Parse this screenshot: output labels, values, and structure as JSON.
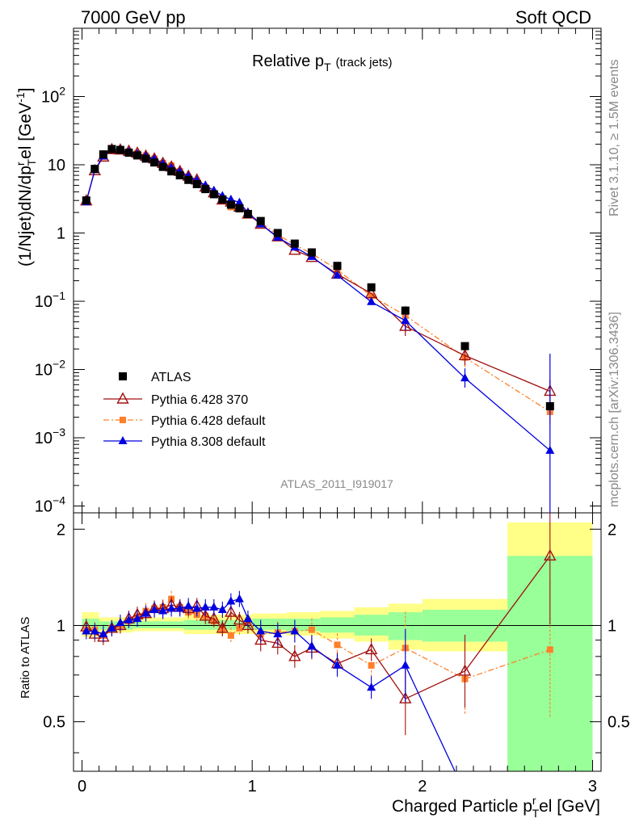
{
  "header": {
    "left": "7000 GeV pp",
    "right": "Soft QCD"
  },
  "side_labels": {
    "rivet": "Rivet 3.1.10, ≥ 1.5M events",
    "mcplots": "mcplots.cern.ch [arXiv:1306.3436]"
  },
  "chart_data": {
    "type": "scatter",
    "title": "Relative p",
    "title_sub": "T",
    "title_suffix": "(track jets)",
    "analysis_label": "ATLAS_2011_I919017",
    "xlabel": "Charged Particle p",
    "xlabel_sub": "T",
    "xlabel_sup": "r",
    "xlabel_suffix": "el [GeV]",
    "ylabel": "(1/Njet)dN/dp",
    "ylabel_sup": "r",
    "ylabel_sub": "T",
    "ylabel_suffix": "el [GeV",
    "ylabel_unit_sup": "-1",
    "ylabel_close": "]",
    "ratio_ylabel": "Ratio to ATLAS",
    "xlim": [
      -0.05,
      3.05
    ],
    "ylim_log": [
      -4.1,
      3.0
    ],
    "ratio_ylim": [
      0.35,
      2.25
    ],
    "log_y": true,
    "legend_position": "bottom-left",
    "x_ticks": [
      "0",
      "1",
      "2",
      "3"
    ],
    "y_ticks": [
      {
        "base": "10",
        "sup": "2",
        "exp": 2
      },
      {
        "base": "10",
        "sup": "",
        "exp": 1
      },
      {
        "base": "1",
        "sup": "",
        "exp": 0
      },
      {
        "base": "10",
        "sup": "−1",
        "exp": -1
      },
      {
        "base": "10",
        "sup": "−2",
        "exp": -2
      },
      {
        "base": "10",
        "sup": "−3",
        "exp": -3
      },
      {
        "base": "10",
        "sup": "−4",
        "exp": -4
      }
    ],
    "ratio_ticks": [
      "0.5",
      "1",
      "2"
    ],
    "x": [
      0.025,
      0.075,
      0.125,
      0.175,
      0.225,
      0.275,
      0.325,
      0.375,
      0.425,
      0.475,
      0.525,
      0.575,
      0.625,
      0.675,
      0.725,
      0.775,
      0.825,
      0.875,
      0.925,
      0.975,
      1.05,
      1.15,
      1.25,
      1.35,
      1.5,
      1.7,
      1.9,
      2.25,
      2.75
    ],
    "bands": [
      {
        "x0": 0.0,
        "x1": 0.1,
        "yellow": [
          0.92,
          1.1
        ],
        "green": [
          0.96,
          1.05
        ]
      },
      {
        "x0": 0.1,
        "x1": 0.3,
        "yellow": [
          0.95,
          1.06
        ],
        "green": [
          0.97,
          1.03
        ]
      },
      {
        "x0": 0.3,
        "x1": 0.6,
        "yellow": [
          0.96,
          1.06
        ],
        "green": [
          0.98,
          1.03
        ]
      },
      {
        "x0": 0.6,
        "x1": 1.0,
        "yellow": [
          0.94,
          1.08
        ],
        "green": [
          0.97,
          1.04
        ]
      },
      {
        "x0": 1.0,
        "x1": 1.2,
        "yellow": [
          0.94,
          1.09
        ],
        "green": [
          0.97,
          1.05
        ]
      },
      {
        "x0": 1.2,
        "x1": 1.4,
        "yellow": [
          0.93,
          1.1
        ],
        "green": [
          0.96,
          1.05
        ]
      },
      {
        "x0": 1.4,
        "x1": 1.6,
        "yellow": [
          0.91,
          1.11
        ],
        "green": [
          0.95,
          1.06
        ]
      },
      {
        "x0": 1.6,
        "x1": 1.8,
        "yellow": [
          0.89,
          1.14
        ],
        "green": [
          0.93,
          1.08
        ]
      },
      {
        "x0": 1.8,
        "x1": 2.0,
        "yellow": [
          0.84,
          1.17
        ],
        "green": [
          0.9,
          1.1
        ]
      },
      {
        "x0": 2.0,
        "x1": 2.5,
        "yellow": [
          0.83,
          1.21
        ],
        "green": [
          0.89,
          1.12
        ]
      },
      {
        "x0": 2.5,
        "x1": 3.0,
        "yellow": [
          0.2,
          2.1
        ],
        "green": [
          0.2,
          1.65
        ]
      }
    ],
    "series": [
      {
        "name": "ATLAS",
        "color": "#000000",
        "marker": "square",
        "line": "none",
        "values": [
          3.0,
          8.7,
          14.2,
          17.0,
          16.5,
          15.0,
          13.7,
          12.3,
          10.8,
          9.3,
          8.0,
          7.0,
          6.0,
          5.2,
          4.4,
          3.7,
          3.1,
          2.6,
          2.3,
          1.9,
          1.5,
          1.0,
          0.7,
          0.52,
          0.33,
          0.16,
          0.073,
          0.022,
          0.0029
        ],
        "ratio": [
          1,
          1,
          1,
          1,
          1,
          1,
          1,
          1,
          1,
          1,
          1,
          1,
          1,
          1,
          1,
          1,
          1,
          1,
          1,
          1,
          1,
          1,
          1,
          1,
          1,
          1,
          1,
          1,
          1
        ]
      },
      {
        "name": "Pythia 6.428 370",
        "color": "#a01010",
        "marker": "triangle-open",
        "line": "solid",
        "values": [
          2.96,
          8.2,
          13.0,
          16.7,
          16.5,
          15.8,
          14.8,
          13.4,
          12.2,
          10.5,
          9.3,
          8.0,
          6.8,
          6.0,
          4.7,
          3.9,
          3.05,
          2.85,
          2.4,
          1.9,
          1.35,
          0.88,
          0.56,
          0.44,
          0.25,
          0.13,
          0.043,
          0.016,
          0.0048
        ],
        "ratio": [
          0.99,
          0.94,
          0.92,
          0.98,
          1.0,
          1.05,
          1.08,
          1.09,
          1.13,
          1.13,
          1.16,
          1.14,
          1.13,
          1.15,
          1.07,
          1.05,
          0.98,
          1.1,
          1.04,
          1.0,
          0.9,
          0.88,
          0.8,
          0.85,
          0.76,
          0.84,
          0.59,
          0.72,
          1.65
        ]
      },
      {
        "name": "Pythia 6.428 default",
        "color": "#ff7f2a",
        "marker": "square-small",
        "line": "dashdot",
        "values": [
          2.9,
          8.4,
          13.2,
          16.7,
          16.3,
          15.5,
          14.7,
          13.6,
          12.2,
          10.6,
          9.7,
          8.0,
          6.6,
          5.6,
          4.7,
          3.8,
          3.0,
          2.4,
          2.25,
          1.95,
          1.41,
          0.95,
          0.67,
          0.5,
          0.29,
          0.12,
          0.062,
          0.015,
          0.0024
        ],
        "ratio": [
          0.97,
          0.97,
          0.93,
          0.98,
          0.99,
          1.03,
          1.07,
          1.11,
          1.13,
          1.14,
          1.21,
          1.14,
          1.1,
          1.08,
          1.07,
          1.03,
          0.97,
          0.93,
          0.98,
          1.03,
          0.94,
          0.95,
          0.96,
          0.97,
          0.87,
          0.75,
          0.85,
          0.68,
          0.84
        ]
      },
      {
        "name": "Pythia 8.308 default",
        "color": "#0000e0",
        "marker": "triangle",
        "line": "solid",
        "values": [
          2.85,
          8.4,
          13.3,
          16.6,
          16.7,
          15.6,
          14.4,
          13.4,
          12.1,
          10.3,
          9.1,
          7.9,
          6.8,
          5.9,
          5.0,
          4.2,
          3.5,
          3.1,
          2.8,
          2.0,
          1.35,
          0.86,
          0.62,
          0.45,
          0.24,
          0.098,
          0.052,
          0.0075,
          0.00065
        ],
        "ratio": [
          0.96,
          0.96,
          0.94,
          0.98,
          1.02,
          1.04,
          1.05,
          1.09,
          1.12,
          1.11,
          1.13,
          1.13,
          1.15,
          1.13,
          1.14,
          1.14,
          1.12,
          1.19,
          1.21,
          1.05,
          0.96,
          0.94,
          0.96,
          0.86,
          0.75,
          0.64,
          0.75,
          0.3,
          0.22
        ]
      }
    ]
  }
}
